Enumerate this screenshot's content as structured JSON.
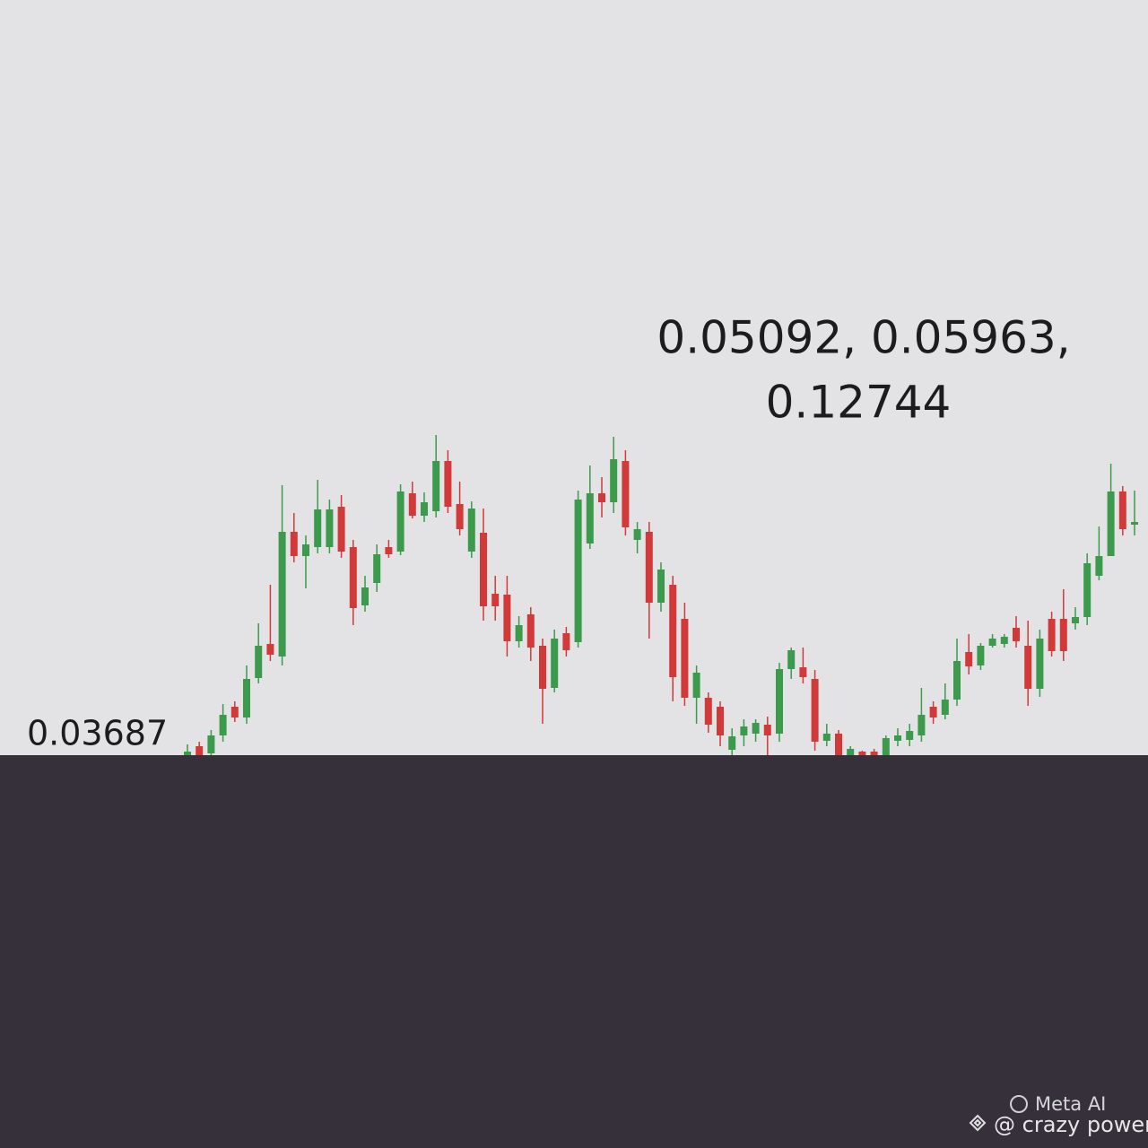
{
  "chart_data": {
    "type": "candlestick",
    "up_color": "#3b9a4b",
    "down_color": "#d23a3a",
    "ylim": [
      0,
      100
    ],
    "annotations": [
      "0.05092, 0.05963,",
      "0.12744",
      "0.03687"
    ],
    "open": [
      0,
      2,
      0.4,
      4.4,
      10.8,
      8.4,
      17.2,
      24.8,
      22,
      49.8,
      44.4,
      46.4,
      46.4,
      55.4,
      46.4,
      33.4,
      38.4,
      46.4,
      45.4,
      58.4,
      53.4,
      54.4,
      65.6,
      56,
      45.4,
      49.6,
      36,
      35.8,
      25.4,
      31.4,
      24.4,
      15,
      27.2,
      25.2,
      47.2,
      58.4,
      56.4,
      65.6,
      48,
      49.8,
      34,
      38,
      30.4,
      12.8,
      12.8,
      10.8,
      1.2,
      4.4,
      4.8,
      6.8,
      4.8,
      19.2,
      19.6,
      17,
      3.2,
      4.8,
      0,
      0.8,
      0.8,
      0,
      3.2,
      3.4,
      4.4,
      10.8,
      9,
      12.4,
      23,
      20,
      24.4,
      24.8,
      28.4,
      24.4,
      14.8,
      30.4,
      30.4,
      29.4,
      30.8,
      40,
      44.4,
      58.8,
      51.4
    ],
    "high": [
      2.4,
      3,
      5.6,
      11.4,
      12,
      20,
      29.4,
      38,
      60.2,
      54,
      49,
      61.4,
      57,
      58,
      48,
      40,
      47,
      48,
      60.4,
      61,
      58.6,
      71.4,
      68,
      61,
      56.6,
      55,
      40,
      40,
      31,
      33,
      26,
      28,
      28.6,
      59,
      64.6,
      62,
      71,
      68,
      52,
      52,
      43,
      40,
      34,
      20,
      14,
      12,
      6,
      8,
      8,
      8.6,
      20.6,
      24,
      24,
      19,
      7,
      5.6,
      2,
      1,
      1.4,
      4.4,
      6,
      7,
      15,
      12,
      16,
      26,
      27,
      25,
      27,
      27,
      31,
      30,
      28,
      32,
      37,
      33,
      45,
      51,
      65,
      60,
      59
    ],
    "low": [
      0,
      0,
      0,
      3,
      7.4,
      7,
      16,
      21,
      20,
      43,
      37.2,
      45,
      45,
      44,
      29,
      32,
      36.4,
      44,
      44.6,
      52.8,
      52,
      53,
      54,
      49,
      44,
      30,
      30,
      22,
      24,
      21,
      7,
      14,
      22,
      24,
      46,
      53,
      54,
      49,
      45,
      26,
      32,
      12,
      11,
      7,
      5,
      2,
      0,
      2,
      3,
      0,
      3,
      17,
      16,
      1,
      2,
      0,
      0,
      0,
      0,
      0,
      2,
      2,
      3,
      7,
      8,
      11,
      18,
      19,
      24,
      24,
      24,
      11,
      13,
      22,
      21,
      28,
      29,
      39,
      45,
      49,
      49
    ],
    "close": [
      0.8,
      0,
      4.4,
      9,
      8.4,
      17,
      24.4,
      22.4,
      49.8,
      44.4,
      47,
      54.8,
      54.8,
      45.4,
      32.8,
      37.4,
      44.8,
      44.8,
      58.8,
      53.4,
      56.4,
      65.6,
      55.4,
      50.4,
      55,
      33.2,
      33.2,
      25.4,
      29,
      24,
      14.8,
      26,
      23.4,
      57,
      58.4,
      56.4,
      66,
      50.8,
      50.4,
      34,
      41.4,
      17.4,
      12.8,
      18.4,
      6.8,
      4.4,
      4.2,
      6.4,
      7.2,
      4.4,
      19.2,
      23.4,
      17.4,
      3,
      4.8,
      0,
      1.4,
      0,
      0,
      3.8,
      4.4,
      5.4,
      9,
      8.4,
      12.4,
      21,
      19.8,
      24.4,
      26,
      26.4,
      25.4,
      14.8,
      26,
      23.2,
      23.2,
      30.8,
      42.8,
      44.4,
      58.8,
      50.4,
      52
    ]
  },
  "watermark": [
    "Meta AI",
    "@ crazy power"
  ]
}
